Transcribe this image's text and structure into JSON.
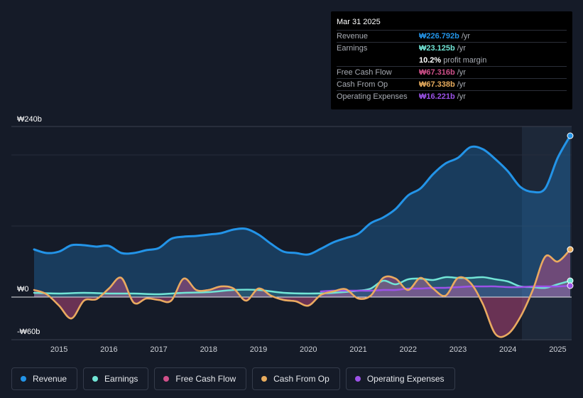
{
  "tooltip": {
    "date": "Mar 31 2025",
    "rows": [
      {
        "label": "Revenue",
        "value": "₩226.792b",
        "unit": "/yr",
        "color": "#2394e8"
      },
      {
        "label": "Earnings",
        "value": "₩23.125b",
        "unit": "/yr",
        "color": "#72e5d6"
      },
      {
        "label": "",
        "value": "10.2%",
        "unit": "profit margin",
        "color": "#ffffff"
      },
      {
        "label": "Free Cash Flow",
        "value": "₩67.316b",
        "unit": "/yr",
        "color": "#d0508a"
      },
      {
        "label": "Cash From Op",
        "value": "₩67.338b",
        "unit": "/yr",
        "color": "#e8ac5e"
      },
      {
        "label": "Operating Expenses",
        "value": "₩16.221b",
        "unit": "/yr",
        "color": "#9c52e8"
      }
    ]
  },
  "chart_data": {
    "type": "area",
    "title": "",
    "xlabel": "",
    "ylabel": "",
    "ylim": [
      -60,
      240
    ],
    "y_tick_labels": [
      "₩240b",
      "₩0",
      "-₩60b"
    ],
    "x_tick_labels": [
      "2015",
      "2016",
      "2017",
      "2018",
      "2019",
      "2020",
      "2021",
      "2022",
      "2023",
      "2024",
      "2025"
    ],
    "series": [
      {
        "name": "Revenue",
        "color": "#2394e8",
        "x": [
          2014.5,
          2014.75,
          2015.0,
          2015.25,
          2015.5,
          2015.75,
          2016.0,
          2016.25,
          2016.5,
          2016.75,
          2017.0,
          2017.25,
          2017.5,
          2017.75,
          2018.0,
          2018.25,
          2018.5,
          2018.75,
          2019.0,
          2019.25,
          2019.5,
          2019.75,
          2020.0,
          2020.25,
          2020.5,
          2020.75,
          2021.0,
          2021.25,
          2021.5,
          2021.75,
          2022.0,
          2022.25,
          2022.5,
          2022.75,
          2023.0,
          2023.25,
          2023.5,
          2023.75,
          2024.0,
          2024.25,
          2024.5,
          2024.75,
          2025.0,
          2025.25
        ],
        "values": [
          67,
          62,
          64,
          73,
          73,
          71,
          72,
          62,
          62,
          66,
          69,
          82,
          85,
          86,
          88,
          90,
          95,
          96,
          88,
          75,
          64,
          62,
          60,
          68,
          77,
          83,
          89,
          104,
          112,
          124,
          143,
          153,
          173,
          188,
          196,
          211,
          208,
          194,
          177,
          155,
          148,
          153,
          196,
          227
        ]
      },
      {
        "name": "Earnings",
        "color": "#72e5d6",
        "x": [
          2014.5,
          2015.0,
          2015.5,
          2016.0,
          2016.5,
          2017.0,
          2017.5,
          2018.0,
          2018.5,
          2019.0,
          2019.5,
          2020.0,
          2020.5,
          2021.0,
          2021.25,
          2021.5,
          2021.75,
          2022.0,
          2022.25,
          2022.5,
          2022.75,
          2023.0,
          2023.25,
          2023.5,
          2023.75,
          2024.0,
          2024.25,
          2024.5,
          2024.75,
          2025.0,
          2025.25
        ],
        "values": [
          6,
          5,
          6,
          5,
          5,
          4,
          6,
          7,
          10,
          10,
          6,
          5,
          6,
          9,
          12,
          23,
          18,
          25,
          26,
          24,
          28,
          27,
          27,
          28,
          25,
          22,
          15,
          14,
          13,
          18,
          23
        ]
      },
      {
        "name": "Free Cash Flow",
        "color": "#d0508a",
        "x": [
          2014.5,
          2014.75,
          2015.0,
          2015.25,
          2015.5,
          2015.75,
          2016.0,
          2016.25,
          2016.5,
          2016.75,
          2017.0,
          2017.25,
          2017.5,
          2017.75,
          2018.0,
          2018.25,
          2018.5,
          2018.75,
          2019.0,
          2019.25,
          2019.5,
          2019.75,
          2020.0,
          2020.25,
          2020.5,
          2020.75,
          2021.0,
          2021.25,
          2021.5,
          2021.75,
          2022.0,
          2022.25,
          2022.5,
          2022.75,
          2023.0,
          2023.25,
          2023.5,
          2023.75,
          2024.0,
          2024.25,
          2024.5,
          2024.75,
          2025.0,
          2025.25
        ],
        "values": [
          10,
          4,
          -12,
          -30,
          -5,
          -3,
          12,
          27,
          -8,
          -2,
          -4,
          -5,
          26,
          10,
          10,
          15,
          12,
          -5,
          12,
          2,
          -4,
          -6,
          -12,
          3,
          8,
          11,
          -2,
          2,
          27,
          26,
          10,
          27,
          12,
          2,
          27,
          20,
          -10,
          -52,
          -52,
          -28,
          10,
          57,
          50,
          67
        ]
      },
      {
        "name": "Cash From Op",
        "color": "#e8ac5e",
        "x": [
          2014.5,
          2014.75,
          2015.0,
          2015.25,
          2015.5,
          2015.75,
          2016.0,
          2016.25,
          2016.5,
          2016.75,
          2017.0,
          2017.25,
          2017.5,
          2017.75,
          2018.0,
          2018.25,
          2018.5,
          2018.75,
          2019.0,
          2019.25,
          2019.5,
          2019.75,
          2020.0,
          2020.25,
          2020.5,
          2020.75,
          2021.0,
          2021.25,
          2021.5,
          2021.75,
          2022.0,
          2022.25,
          2022.5,
          2022.75,
          2023.0,
          2023.25,
          2023.5,
          2023.75,
          2024.0,
          2024.25,
          2024.5,
          2024.75,
          2025.0,
          2025.25
        ],
        "values": [
          10,
          4,
          -12,
          -30,
          -5,
          -3,
          12,
          27,
          -8,
          -2,
          -4,
          -5,
          26,
          10,
          10,
          15,
          12,
          -5,
          12,
          2,
          -4,
          -6,
          -12,
          3,
          8,
          11,
          -2,
          2,
          27,
          26,
          10,
          27,
          12,
          2,
          27,
          20,
          -10,
          -52,
          -52,
          -28,
          10,
          57,
          50,
          67
        ]
      },
      {
        "name": "Operating Expenses",
        "color": "#9c52e8",
        "x": [
          2020.25,
          2020.5,
          2020.75,
          2021.0,
          2021.25,
          2021.5,
          2021.75,
          2022.0,
          2022.25,
          2022.5,
          2022.75,
          2023.0,
          2023.25,
          2023.5,
          2023.75,
          2024.0,
          2024.25,
          2024.5,
          2024.75,
          2025.0,
          2025.25
        ],
        "values": [
          8,
          9,
          9,
          9,
          9,
          10,
          10,
          12,
          12,
          13,
          13,
          14,
          15,
          15,
          15,
          14,
          14,
          15,
          15,
          15,
          16
        ]
      }
    ]
  },
  "legend": [
    {
      "label": "Revenue",
      "color": "#2394e8"
    },
    {
      "label": "Earnings",
      "color": "#72e5d6"
    },
    {
      "label": "Free Cash Flow",
      "color": "#d0508a"
    },
    {
      "label": "Cash From Op",
      "color": "#e8ac5e"
    },
    {
      "label": "Operating Expenses",
      "color": "#9c52e8"
    }
  ]
}
